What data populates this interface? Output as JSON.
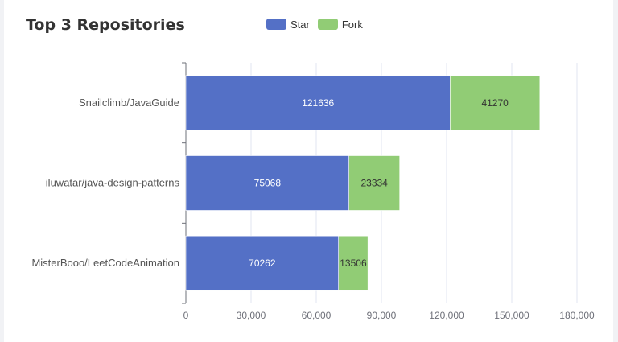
{
  "header": {
    "title": "Top 3 Repositories"
  },
  "legend": [
    {
      "name": "Star",
      "color": "#5470c6"
    },
    {
      "name": "Fork",
      "color": "#91cc75"
    }
  ],
  "chart_data": {
    "type": "bar",
    "orientation": "horizontal",
    "stacked": true,
    "title": "Top 3 Repositories",
    "categories": [
      "Snailclimb/JavaGuide",
      "iluwatar/java-design-patterns",
      "MisterBooo/LeetCodeAnimation"
    ],
    "series": [
      {
        "name": "Star",
        "color": "#5470c6",
        "values": [
          121636,
          75068,
          70262
        ]
      },
      {
        "name": "Fork",
        "color": "#91cc75",
        "values": [
          41270,
          23334,
          13506
        ]
      }
    ],
    "xlim": [
      0,
      180000
    ],
    "xticks": [
      0,
      30000,
      60000,
      90000,
      120000,
      150000,
      180000
    ],
    "xtick_labels": [
      "0",
      "30,000",
      "60,000",
      "90,000",
      "120,000",
      "150,000",
      "180,000"
    ],
    "grid": true,
    "legend_position": "top"
  }
}
